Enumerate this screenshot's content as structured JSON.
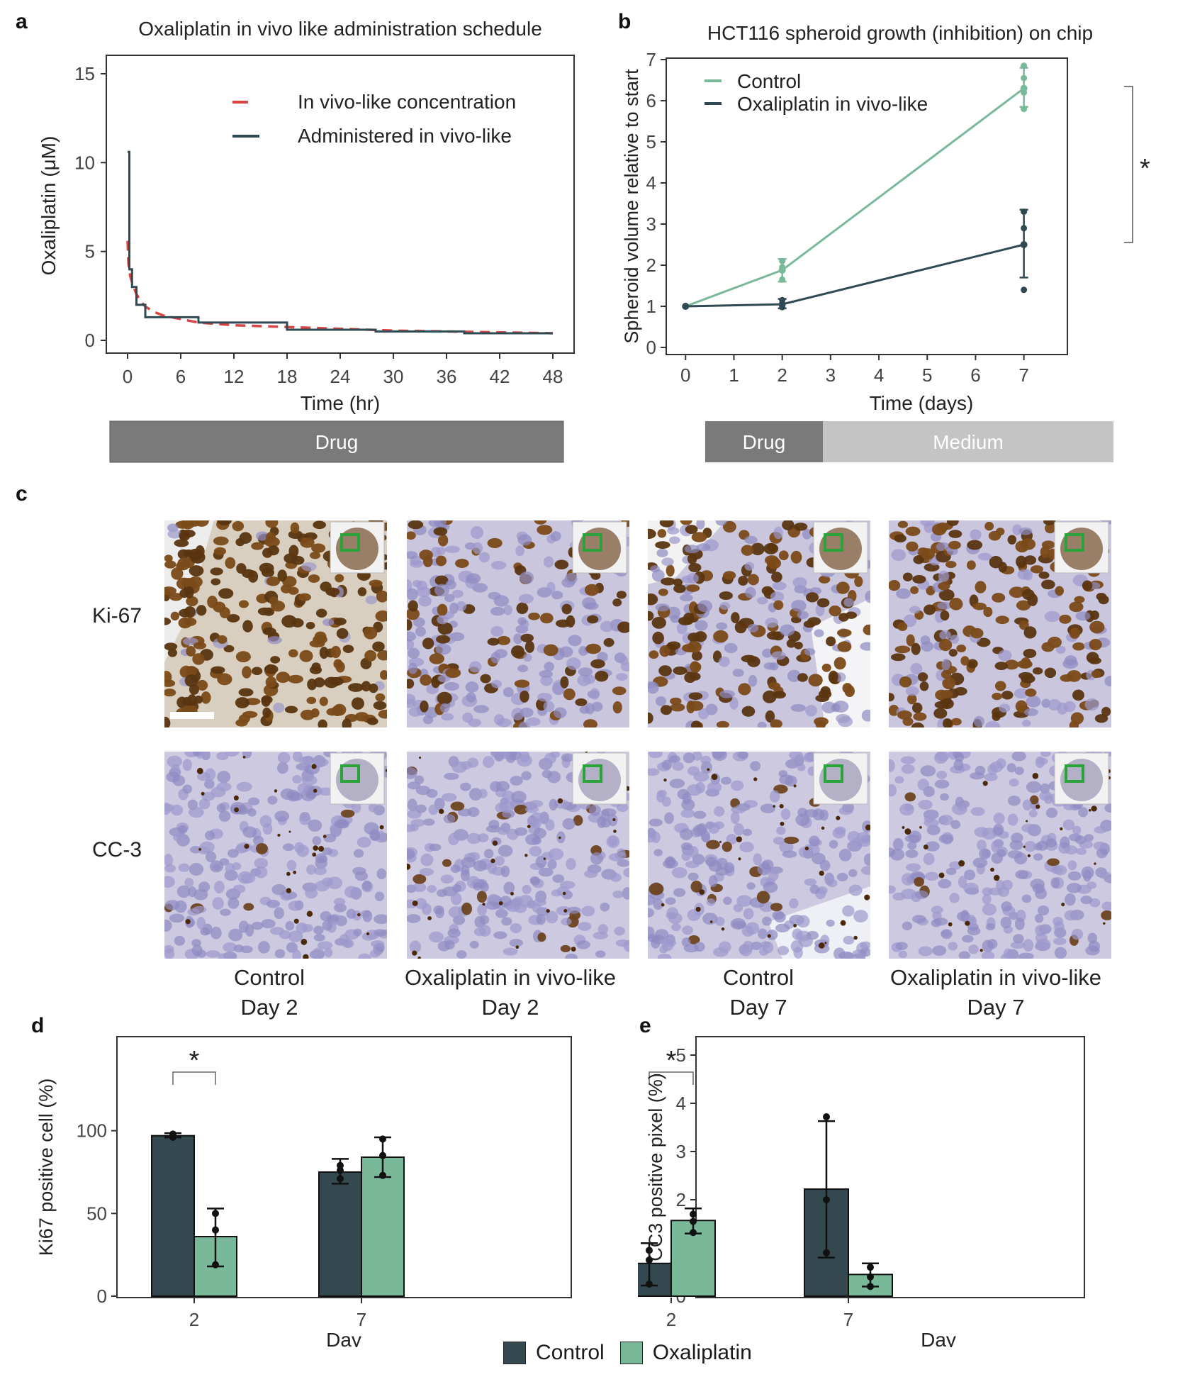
{
  "panels": {
    "a": {
      "letter": "a",
      "chart_data": {
        "type": "line",
        "title": "Oxaliplatin in vivo like administration schedule",
        "xlabel": "Time (hr)",
        "ylabel": "Oxaliplatin (μM)",
        "xlim": [
          0,
          48
        ],
        "ylim": [
          0,
          15
        ],
        "xticks": [
          0,
          6,
          12,
          18,
          24,
          30,
          36,
          42,
          48
        ],
        "yticks": [
          0,
          5,
          10,
          15
        ],
        "legend_position": "top-right",
        "series": [
          {
            "name": "In vivo-like concentration",
            "style": "dashed",
            "color": "#d94545",
            "x": [
              0,
              0.1,
              0.3,
              0.6,
              1,
              1.5,
              2,
              3,
              4,
              6,
              8,
              12,
              18,
              24,
              30,
              36,
              42,
              48
            ],
            "y": [
              5.6,
              4.3,
              3.6,
              3.1,
              2.6,
              2.2,
              1.9,
              1.6,
              1.4,
              1.2,
              1.0,
              0.85,
              0.75,
              0.65,
              0.55,
              0.5,
              0.45,
              0.4
            ]
          },
          {
            "name": "Administered in vivo-like",
            "style": "step",
            "color": "#2f4a52",
            "x": [
              0,
              0.2,
              0.2,
              0.5,
              0.5,
              1,
              1,
              2,
              2,
              8,
              8,
              18,
              18,
              28,
              28,
              38,
              38,
              48
            ],
            "y": [
              10.6,
              10.6,
              4.0,
              4.0,
              3.0,
              3.0,
              2.0,
              2.0,
              1.3,
              1.3,
              1.0,
              1.0,
              0.6,
              0.6,
              0.5,
              0.5,
              0.4,
              0.4
            ]
          }
        ]
      },
      "bar_label": "Drug"
    },
    "b": {
      "letter": "b",
      "chart_data": {
        "type": "line",
        "title": "HCT116 spheroid growth (inhibition) on chip",
        "xlabel": "Time (days)",
        "ylabel": "Spheroid volume relative to start",
        "xlim": [
          -0.4,
          7.9
        ],
        "ylim": [
          0,
          7
        ],
        "xticks": [
          0,
          1,
          2,
          3,
          4,
          5,
          6,
          7
        ],
        "yticks": [
          0,
          1,
          2,
          3,
          4,
          5,
          6,
          7
        ],
        "legend_position": "top-left",
        "significance": "*",
        "series": [
          {
            "name": "Control",
            "color": "#7ab89a",
            "x": [
              0,
              2,
              7
            ],
            "y": [
              1.0,
              1.88,
              6.3
            ],
            "err_low": [
              1.0,
              1.6,
              5.85
            ],
            "err_high": [
              1.0,
              2.15,
              6.8
            ],
            "points": [
              [
                2,
                2.1
              ],
              [
                2,
                1.95
              ],
              [
                2,
                1.65
              ],
              [
                7,
                6.85
              ],
              [
                7,
                6.55
              ],
              [
                7,
                6.2
              ],
              [
                7,
                5.8
              ]
            ]
          },
          {
            "name": "Oxaliplatin in vivo-like",
            "color": "#2f4a52",
            "x": [
              0,
              2,
              7
            ],
            "y": [
              1.0,
              1.05,
              2.5
            ],
            "err_low": [
              1.0,
              0.95,
              1.7
            ],
            "err_high": [
              1.0,
              1.18,
              3.35
            ],
            "points": [
              [
                2,
                1.15
              ],
              [
                2,
                1.05
              ],
              [
                2,
                0.98
              ],
              [
                7,
                3.3
              ],
              [
                7,
                2.9
              ],
              [
                7,
                1.4
              ]
            ]
          }
        ]
      },
      "bar_labels": [
        "Drug",
        "Medium"
      ]
    },
    "c": {
      "letter": "c",
      "row_labels": [
        "Ki-67",
        "CC-3"
      ],
      "columns": [
        {
          "line1": "Control",
          "line2": "Day 2"
        },
        {
          "line1": "Oxaliplatin in vivo-like",
          "line2": "Day 2"
        },
        {
          "line1": "Control",
          "line2": "Day 7"
        },
        {
          "line1": "Oxaliplatin in vivo-like",
          "line2": "Day 7"
        }
      ]
    },
    "d": {
      "letter": "d",
      "chart_data": {
        "type": "bar",
        "xlabel": "Day",
        "ylabel": "Ki67 positive cell (%)",
        "categories": [
          "2",
          "7"
        ],
        "ylim": [
          0,
          120
        ],
        "yticks": [
          0,
          50,
          100
        ],
        "significance": "*",
        "series": [
          {
            "name": "Control",
            "color": "#34494f",
            "values": [
              97,
              75
            ],
            "err_low": [
              96,
              68
            ],
            "err_high": [
              98.5,
              83
            ],
            "points": [
              [
                96,
                97,
                98
              ],
              [
                71,
                76,
                79
              ]
            ]
          },
          {
            "name": "Oxaliplatin",
            "color": "#7ab89a",
            "values": [
              36,
              84
            ],
            "err_low": [
              18,
              72
            ],
            "err_high": [
              53,
              96
            ],
            "points": [
              [
                19,
                40,
                50
              ],
              [
                73,
                85,
                95
              ]
            ]
          }
        ]
      }
    },
    "e": {
      "letter": "e",
      "chart_data": {
        "type": "bar",
        "xlabel": "Day",
        "ylabel": "CC3 positive pixel (%)",
        "categories": [
          "2",
          "7"
        ],
        "ylim": [
          0,
          5
        ],
        "yticks": [
          0,
          1,
          2,
          3,
          4,
          5
        ],
        "significance": "*",
        "series": [
          {
            "name": "Control",
            "color": "#34494f",
            "values": [
              0.68,
              2.22
            ],
            "err_low": [
              0.22,
              0.8
            ],
            "err_high": [
              1.1,
              3.63
            ],
            "points": [
              [
                0.25,
                0.75,
                0.95
              ],
              [
                0.9,
                2.0,
                3.72
              ]
            ]
          },
          {
            "name": "Oxaliplatin",
            "color": "#7ab89a",
            "values": [
              1.57,
              0.45
            ],
            "err_low": [
              1.3,
              0.2
            ],
            "err_high": [
              1.82,
              0.68
            ],
            "points": [
              [
                1.32,
                1.55,
                1.7
              ],
              [
                0.2,
                0.4,
                0.6
              ]
            ]
          }
        ]
      }
    }
  },
  "legend_bottom": [
    "Control",
    "Oxaliplatin"
  ],
  "colors": {
    "control_dark": "#34494f",
    "oxaliplatin_green": "#7ab89a",
    "drug_bar": "#7a7a7a",
    "medium_bar": "#c4c4c4",
    "dashed_red": "#d94545",
    "roi_box": "#29a33a"
  }
}
